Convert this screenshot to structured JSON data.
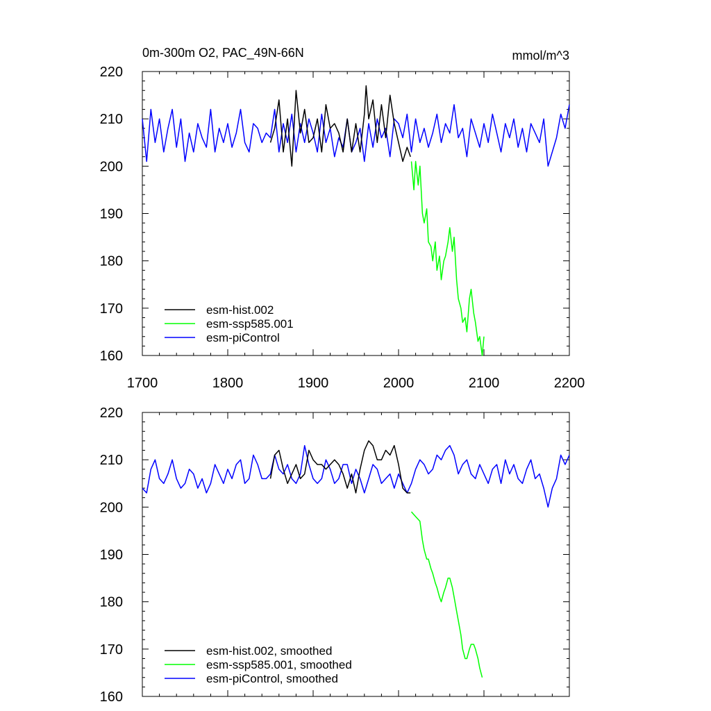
{
  "chart_data": [
    {
      "type": "line",
      "title": "0m-300m O2, PAC_49N-66N",
      "units": "mmol/m^3",
      "xlim": [
        1700,
        2200
      ],
      "ylim": [
        160,
        220
      ],
      "xticks": [
        "1700",
        "1800",
        "1900",
        "2000",
        "2100",
        "2200"
      ],
      "yticks": [
        "160",
        "170",
        "180",
        "190",
        "200",
        "210",
        "220"
      ],
      "show_x_tick_labels": true,
      "legend_position": "bottom-left",
      "series": [
        {
          "name": "esm-hist.002",
          "color": "#000000",
          "x": [
            1850,
            1855,
            1860,
            1865,
            1870,
            1875,
            1880,
            1885,
            1890,
            1895,
            1900,
            1905,
            1910,
            1915,
            1920,
            1925,
            1930,
            1935,
            1940,
            1945,
            1950,
            1955,
            1960,
            1962,
            1965,
            1970,
            1975,
            1980,
            1985,
            1990,
            1995,
            2000,
            2005,
            2010,
            2014
          ],
          "y": [
            205,
            208,
            214,
            203,
            210,
            200,
            216,
            207,
            212,
            205,
            206,
            210,
            203,
            213,
            208,
            209,
            207,
            203,
            210,
            203,
            209,
            203,
            211,
            217,
            210,
            214,
            205,
            213,
            206,
            215,
            209,
            205,
            201,
            204,
            202
          ]
        },
        {
          "name": "esm-ssp585.001",
          "color": "#00ff00",
          "x": [
            2015,
            2018,
            2020,
            2023,
            2025,
            2028,
            2030,
            2033,
            2035,
            2038,
            2040,
            2043,
            2045,
            2048,
            2050,
            2053,
            2055,
            2058,
            2060,
            2063,
            2065,
            2068,
            2070,
            2073,
            2075,
            2078,
            2080,
            2083,
            2085,
            2088,
            2090,
            2093,
            2095,
            2098,
            2100
          ],
          "y": [
            201,
            195,
            201,
            196,
            200,
            190,
            188,
            191,
            184,
            183,
            180,
            184,
            178,
            181,
            176,
            180,
            181,
            184,
            187,
            182,
            185,
            176,
            172,
            170,
            167,
            168,
            165,
            172,
            174,
            169,
            167,
            163,
            164,
            160,
            164
          ]
        },
        {
          "name": "esm-piControl",
          "color": "#0000ff",
          "x": [
            1700,
            1705,
            1710,
            1715,
            1720,
            1725,
            1730,
            1735,
            1740,
            1745,
            1750,
            1755,
            1760,
            1765,
            1770,
            1775,
            1780,
            1785,
            1790,
            1795,
            1800,
            1805,
            1810,
            1815,
            1820,
            1825,
            1830,
            1835,
            1840,
            1845,
            1850,
            1855,
            1860,
            1865,
            1870,
            1875,
            1880,
            1885,
            1890,
            1895,
            1900,
            1905,
            1910,
            1915,
            1920,
            1925,
            1930,
            1935,
            1940,
            1945,
            1950,
            1955,
            1960,
            1965,
            1970,
            1975,
            1980,
            1985,
            1990,
            1995,
            2000,
            2005,
            2010,
            2015,
            2020,
            2025,
            2030,
            2035,
            2040,
            2045,
            2050,
            2055,
            2060,
            2065,
            2070,
            2075,
            2080,
            2085,
            2090,
            2095,
            2100,
            2105,
            2110,
            2115,
            2120,
            2125,
            2130,
            2135,
            2140,
            2145,
            2150,
            2155,
            2160,
            2165,
            2170,
            2175,
            2180,
            2185,
            2190,
            2195,
            2200
          ],
          "y": [
            210,
            201,
            212,
            205,
            210,
            203,
            208,
            212,
            204,
            210,
            201,
            207,
            203,
            209,
            206,
            204,
            212,
            203,
            208,
            205,
            209,
            204,
            207,
            212,
            205,
            203,
            209,
            208,
            205,
            207,
            206,
            212,
            203,
            209,
            205,
            211,
            203,
            209,
            205,
            210,
            207,
            203,
            211,
            205,
            208,
            202,
            206,
            204,
            210,
            203,
            205,
            208,
            201,
            209,
            204,
            210,
            206,
            208,
            202,
            210,
            209,
            206,
            211,
            203,
            210,
            205,
            208,
            204,
            207,
            211,
            205,
            209,
            207,
            213,
            206,
            208,
            202,
            210,
            207,
            204,
            209,
            205,
            211,
            207,
            203,
            209,
            206,
            210,
            204,
            208,
            203,
            209,
            207,
            205,
            210,
            200,
            203,
            206,
            211,
            208,
            213
          ]
        }
      ]
    },
    {
      "type": "line",
      "title": "",
      "xlim": [
        1700,
        2200
      ],
      "ylim": [
        160,
        220
      ],
      "xticks": [
        "1700",
        "1800",
        "1900",
        "2000",
        "2100",
        "2200"
      ],
      "yticks": [
        "160",
        "170",
        "180",
        "190",
        "200",
        "210",
        "220"
      ],
      "show_x_tick_labels": false,
      "legend_position": "bottom-left",
      "series": [
        {
          "name": "esm-hist.002, smoothed",
          "color": "#000000",
          "x": [
            1850,
            1855,
            1860,
            1865,
            1870,
            1875,
            1880,
            1885,
            1890,
            1895,
            1900,
            1905,
            1910,
            1915,
            1920,
            1925,
            1930,
            1935,
            1940,
            1945,
            1950,
            1955,
            1960,
            1965,
            1970,
            1975,
            1980,
            1985,
            1990,
            1995,
            2000,
            2005,
            2010,
            2014
          ],
          "y": [
            206,
            211,
            212,
            208,
            205,
            207,
            209,
            206,
            207,
            212,
            210,
            209,
            209,
            208,
            209,
            210,
            209,
            207,
            204,
            207,
            203,
            208,
            212,
            214,
            213,
            210,
            210,
            212,
            211,
            213,
            209,
            204,
            203,
            203
          ]
        },
        {
          "name": "esm-ssp585.001, smoothed",
          "color": "#00ff00",
          "x": [
            2015,
            2020,
            2025,
            2028,
            2030,
            2033,
            2035,
            2038,
            2040,
            2043,
            2045,
            2048,
            2050,
            2053,
            2055,
            2058,
            2060,
            2063,
            2065,
            2068,
            2070,
            2073,
            2075,
            2078,
            2080,
            2083,
            2085,
            2088,
            2090,
            2093,
            2095,
            2098
          ],
          "y": [
            199,
            198,
            197,
            193,
            191,
            189,
            189,
            187,
            186,
            184,
            183,
            181,
            180,
            182,
            183,
            185,
            185,
            183,
            181,
            178,
            176,
            173,
            170,
            168,
            168,
            170,
            171,
            171,
            170,
            168,
            166,
            164
          ]
        },
        {
          "name": "esm-piControl, smoothed",
          "color": "#0000ff",
          "x": [
            1700,
            1705,
            1710,
            1715,
            1720,
            1725,
            1730,
            1735,
            1740,
            1745,
            1750,
            1755,
            1760,
            1765,
            1770,
            1775,
            1780,
            1785,
            1790,
            1795,
            1800,
            1805,
            1810,
            1815,
            1820,
            1825,
            1830,
            1835,
            1840,
            1845,
            1850,
            1855,
            1860,
            1865,
            1870,
            1875,
            1880,
            1885,
            1890,
            1895,
            1900,
            1905,
            1910,
            1915,
            1920,
            1925,
            1930,
            1935,
            1940,
            1945,
            1950,
            1955,
            1960,
            1965,
            1970,
            1975,
            1980,
            1985,
            1990,
            1995,
            2000,
            2005,
            2010,
            2015,
            2020,
            2025,
            2030,
            2035,
            2040,
            2045,
            2050,
            2055,
            2060,
            2065,
            2070,
            2075,
            2080,
            2085,
            2090,
            2095,
            2100,
            2105,
            2110,
            2115,
            2120,
            2125,
            2130,
            2135,
            2140,
            2145,
            2150,
            2155,
            2160,
            2165,
            2170,
            2175,
            2180,
            2185,
            2190,
            2195,
            2200
          ],
          "y": [
            204,
            203,
            208,
            210,
            206,
            205,
            207,
            210,
            206,
            204,
            205,
            208,
            207,
            204,
            206,
            203,
            205,
            209,
            207,
            205,
            208,
            206,
            209,
            210,
            205,
            206,
            211,
            209,
            206,
            206,
            207,
            211,
            208,
            207,
            209,
            206,
            205,
            207,
            213,
            209,
            206,
            205,
            206,
            210,
            208,
            205,
            206,
            209,
            209,
            205,
            208,
            206,
            203,
            206,
            209,
            208,
            205,
            206,
            207,
            204,
            207,
            205,
            203,
            205,
            208,
            210,
            209,
            207,
            208,
            211,
            210,
            212,
            213,
            211,
            207,
            209,
            210,
            207,
            206,
            209,
            207,
            205,
            208,
            209,
            205,
            210,
            207,
            209,
            206,
            205,
            208,
            210,
            206,
            207,
            204,
            200,
            204,
            206,
            211,
            209,
            211
          ]
        }
      ]
    }
  ]
}
